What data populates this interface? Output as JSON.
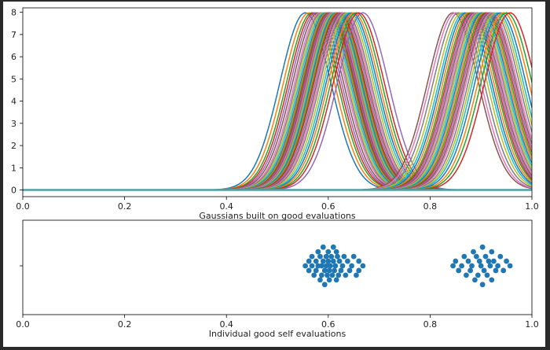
{
  "chart_data": [
    {
      "type": "line",
      "name": "gaussians-plot",
      "title": "",
      "xlabel": "Gaussians built on good evaluations",
      "ylabel": "",
      "xlim": [
        0.0,
        1.0
      ],
      "ylim": [
        -0.3,
        8.2
      ],
      "xticks": [
        "0.0",
        "0.2",
        "0.4",
        "0.6",
        "0.8",
        "1.0"
      ],
      "yticks": [
        "0",
        "1",
        "2",
        "3",
        "4",
        "5",
        "6",
        "7",
        "8"
      ],
      "series_peak": 7.98,
      "series_sigma": 0.05,
      "series_centers": [
        0.555,
        0.562,
        0.568,
        0.572,
        0.576,
        0.58,
        0.584,
        0.587,
        0.59,
        0.593,
        0.596,
        0.598,
        0.6,
        0.602,
        0.604,
        0.606,
        0.608,
        0.61,
        0.612,
        0.614,
        0.616,
        0.618,
        0.62,
        0.622,
        0.625,
        0.628,
        0.631,
        0.634,
        0.638,
        0.642,
        0.646,
        0.65,
        0.655,
        0.66,
        0.668,
        0.845,
        0.85,
        0.856,
        0.862,
        0.867,
        0.871,
        0.875,
        0.879,
        0.882,
        0.885,
        0.888,
        0.891,
        0.894,
        0.897,
        0.9,
        0.903,
        0.906,
        0.909,
        0.912,
        0.915,
        0.918,
        0.921,
        0.925,
        0.929,
        0.933,
        0.938,
        0.944,
        0.95,
        0.957
      ]
    },
    {
      "type": "scatter",
      "name": "swarm-plot",
      "title": "",
      "xlabel": "Individual good self evaluations",
      "ylabel": "",
      "xlim": [
        0.0,
        1.0
      ],
      "xticks": [
        "0.0",
        "0.2",
        "0.4",
        "0.6",
        "0.8",
        "1.0"
      ],
      "points": [
        [
          0.555,
          0
        ],
        [
          0.562,
          0.7
        ],
        [
          0.562,
          -0.7
        ],
        [
          0.568,
          1.4
        ],
        [
          0.568,
          0
        ],
        [
          0.572,
          -1.4
        ],
        [
          0.576,
          0.7
        ],
        [
          0.576,
          -0.7
        ],
        [
          0.58,
          2.1
        ],
        [
          0.58,
          0
        ],
        [
          0.584,
          -2.1
        ],
        [
          0.584,
          1.4
        ],
        [
          0.587,
          -1.4
        ],
        [
          0.587,
          0
        ],
        [
          0.59,
          2.8
        ],
        [
          0.59,
          0.7
        ],
        [
          0.593,
          -0.7
        ],
        [
          0.593,
          -2.8
        ],
        [
          0.596,
          1.4
        ],
        [
          0.596,
          0
        ],
        [
          0.598,
          -1.4
        ],
        [
          0.6,
          2.1
        ],
        [
          0.6,
          0.7
        ],
        [
          0.602,
          -0.7
        ],
        [
          0.602,
          -2.1
        ],
        [
          0.604,
          0
        ],
        [
          0.606,
          1.4
        ],
        [
          0.608,
          -1.4
        ],
        [
          0.61,
          2.8
        ],
        [
          0.61,
          0.7
        ],
        [
          0.612,
          -0.7
        ],
        [
          0.614,
          0
        ],
        [
          0.616,
          2.1
        ],
        [
          0.616,
          -2.1
        ],
        [
          0.618,
          1.4
        ],
        [
          0.62,
          -1.4
        ],
        [
          0.622,
          0.7
        ],
        [
          0.625,
          -0.7
        ],
        [
          0.628,
          0
        ],
        [
          0.631,
          1.4
        ],
        [
          0.634,
          -1.4
        ],
        [
          0.638,
          0.7
        ],
        [
          0.642,
          -0.7
        ],
        [
          0.646,
          0
        ],
        [
          0.65,
          1.4
        ],
        [
          0.655,
          -1.4
        ],
        [
          0.66,
          0.7
        ],
        [
          0.66,
          -0.7
        ],
        [
          0.668,
          0
        ],
        [
          0.845,
          0
        ],
        [
          0.85,
          0.7
        ],
        [
          0.856,
          -0.7
        ],
        [
          0.862,
          0
        ],
        [
          0.867,
          1.4
        ],
        [
          0.871,
          -1.4
        ],
        [
          0.875,
          0.7
        ],
        [
          0.879,
          -0.7
        ],
        [
          0.882,
          0
        ],
        [
          0.885,
          2.1
        ],
        [
          0.888,
          -2.1
        ],
        [
          0.891,
          1.4
        ],
        [
          0.894,
          -1.4
        ],
        [
          0.897,
          0.7
        ],
        [
          0.9,
          0
        ],
        [
          0.903,
          2.8
        ],
        [
          0.903,
          -2.8
        ],
        [
          0.906,
          -0.7
        ],
        [
          0.909,
          1.4
        ],
        [
          0.912,
          -1.4
        ],
        [
          0.915,
          0.7
        ],
        [
          0.918,
          0
        ],
        [
          0.921,
          2.1
        ],
        [
          0.921,
          -2.1
        ],
        [
          0.925,
          0.7
        ],
        [
          0.929,
          -0.7
        ],
        [
          0.933,
          0
        ],
        [
          0.938,
          1.4
        ],
        [
          0.944,
          -0.7
        ],
        [
          0.95,
          0.7
        ],
        [
          0.957,
          0
        ]
      ]
    }
  ],
  "colors": [
    "#1f77b4",
    "#ff7f0e",
    "#2ca02c",
    "#d62728",
    "#9467bd",
    "#8c564b",
    "#e377c2",
    "#7f7f7f",
    "#bcbd22",
    "#17becf"
  ],
  "baseline_color": "#4aa3a3",
  "swarm_color": "#1f77b4"
}
